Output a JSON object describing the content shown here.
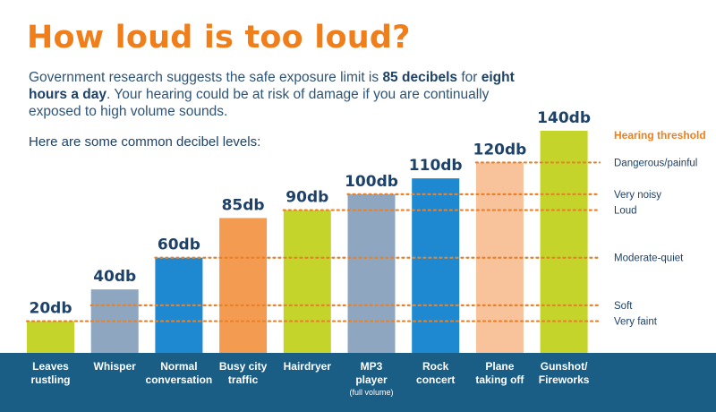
{
  "header": {
    "title": "How loud is too loud?",
    "intro": {
      "part1": "Government research suggests the safe exposure limit is ",
      "bold1": "85 decibels",
      "part2": " for ",
      "bold2": "eight hours a day",
      "part3": ".  Your hearing could be at risk of damage if you are continually exposed to high volume sounds."
    },
    "subhead": "Here are some common decibel levels:"
  },
  "colors": {
    "title": "#f07f1b",
    "text": "#1d4168",
    "footer": "#1a5e86",
    "dots": "#e8822a",
    "threshold_title": "#f07f1b"
  },
  "chart_data": {
    "type": "bar",
    "unit_suffix": "db",
    "categories": [
      {
        "line1": "Leaves",
        "line2": "rustling",
        "note": ""
      },
      {
        "line1": "Whisper",
        "line2": "",
        "note": ""
      },
      {
        "line1": "Normal",
        "line2": "conversation",
        "note": ""
      },
      {
        "line1": "Busy city",
        "line2": "traffic",
        "note": ""
      },
      {
        "line1": "Hairdryer",
        "line2": "",
        "note": ""
      },
      {
        "line1": "MP3",
        "line2": "player",
        "note": "(full volume)"
      },
      {
        "line1": "Rock",
        "line2": "concert",
        "note": ""
      },
      {
        "line1": "Plane",
        "line2": "taking off",
        "note": ""
      },
      {
        "line1": "Gunshot/",
        "line2": "Fireworks",
        "note": ""
      }
    ],
    "values": [
      20,
      40,
      60,
      85,
      90,
      100,
      110,
      120,
      140
    ],
    "value_labels": [
      "20db",
      "40db",
      "60db",
      "85db",
      "90db",
      "100db",
      "110db",
      "120db",
      "140db"
    ],
    "colors": [
      "#c4d42b",
      "#8ea6bf",
      "#1e88d0",
      "#f49b52",
      "#c4d42b",
      "#8ea6bf",
      "#1e88d0",
      "#f8c39b",
      "#c4d42b"
    ],
    "ylim": [
      0,
      140
    ],
    "thresholds_title": "Hearing threshold",
    "thresholds": [
      {
        "label": "Dangerous/painful",
        "value": 120
      },
      {
        "label": "Very noisy",
        "value": 100
      },
      {
        "label": "Loud",
        "value": 90
      },
      {
        "label": "Moderate-quiet",
        "value": 60
      },
      {
        "label": "Soft",
        "value": 30
      },
      {
        "label": "Very faint",
        "value": 20
      }
    ]
  }
}
